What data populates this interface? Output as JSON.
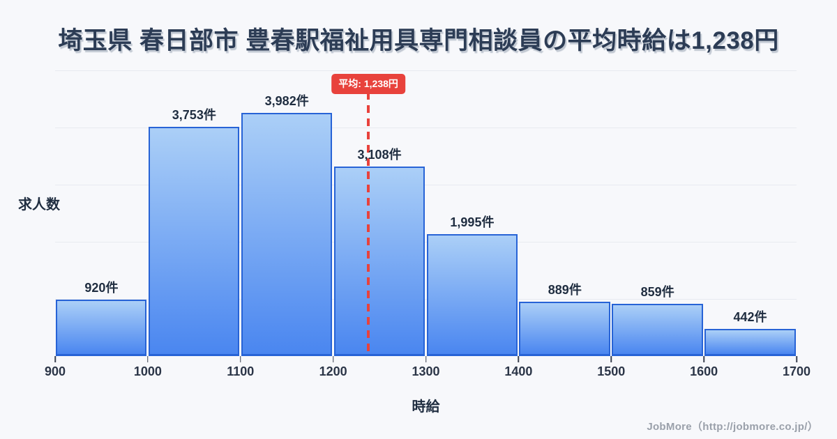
{
  "title": "埼玉県 春日部市 豊春駅福祉用具専門相談員の平均時給は1,238円",
  "footer": "JobMore（http://jobmore.co.jp/）",
  "colors": {
    "background": "#f7f8fb",
    "title_text": "#2c3c55",
    "bar_gradient_top": "#abcff7",
    "bar_gradient_bottom": "#4a86f0",
    "bar_border": "#2763d6",
    "gridline": "#e7eaf0",
    "average_accent": "#e8423c",
    "label_text": "#1f2d40",
    "footer_text": "#9aa0aa"
  },
  "chart_data": {
    "type": "bar",
    "subtype": "histogram",
    "xlabel": "時給",
    "ylabel": "求人数",
    "x_ticks": [
      900,
      1000,
      1100,
      1200,
      1300,
      1400,
      1500,
      1600,
      1700
    ],
    "xlim": [
      900,
      1700
    ],
    "ylim": [
      0,
      4676
    ],
    "grid": "horizontal",
    "gridline_divisions": 5,
    "bins": [
      {
        "range": [
          900,
          1000
        ],
        "count": 920,
        "label": "920件"
      },
      {
        "range": [
          1000,
          1100
        ],
        "count": 3753,
        "label": "3,753件"
      },
      {
        "range": [
          1100,
          1200
        ],
        "count": 3982,
        "label": "3,982件"
      },
      {
        "range": [
          1200,
          1300
        ],
        "count": 3108,
        "label": "3,108件"
      },
      {
        "range": [
          1300,
          1400
        ],
        "count": 1995,
        "label": "1,995件"
      },
      {
        "range": [
          1400,
          1500
        ],
        "count": 889,
        "label": "889件"
      },
      {
        "range": [
          1500,
          1600
        ],
        "count": 859,
        "label": "859件"
      },
      {
        "range": [
          1600,
          1700
        ],
        "count": 442,
        "label": "442件"
      }
    ],
    "average": {
      "value": 1238,
      "label": "平均: 1,238円"
    }
  }
}
